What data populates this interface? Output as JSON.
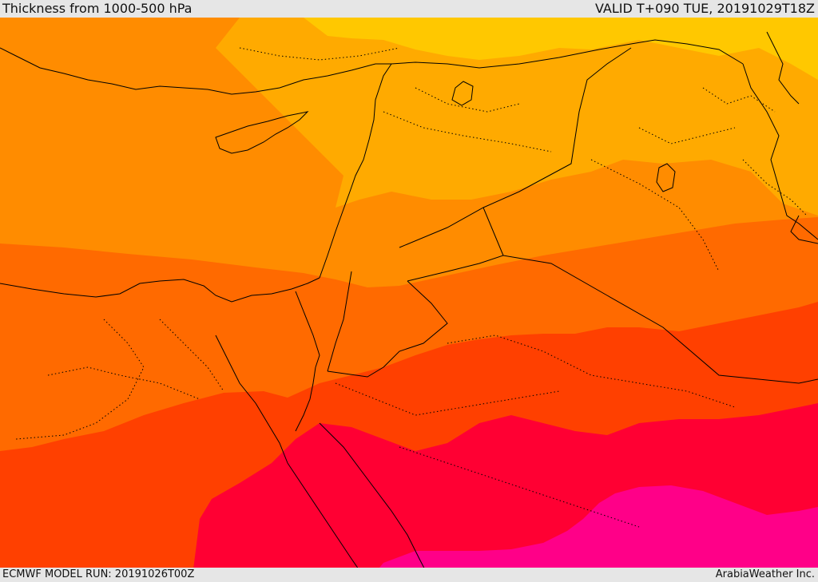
{
  "header": {
    "title": "Thickness from 1000-500 hPa",
    "valid": "VALID T+090 TUE, 20191029T18Z"
  },
  "footer": {
    "model_run": "ECMWF MODEL RUN: 20191026T00Z",
    "credit": "ArabiaWeather Inc."
  },
  "colors": {
    "band_1_yellow": "#ffc800",
    "band_2_amber": "#ffaa00",
    "band_3_orange": "#ff8c00",
    "band_4_dark_orange": "#ff6a00",
    "band_5_red_orange": "#ff4000",
    "band_6_crimson": "#ff0033",
    "band_7_magenta": "#ff0088",
    "borders": "#000000"
  }
}
